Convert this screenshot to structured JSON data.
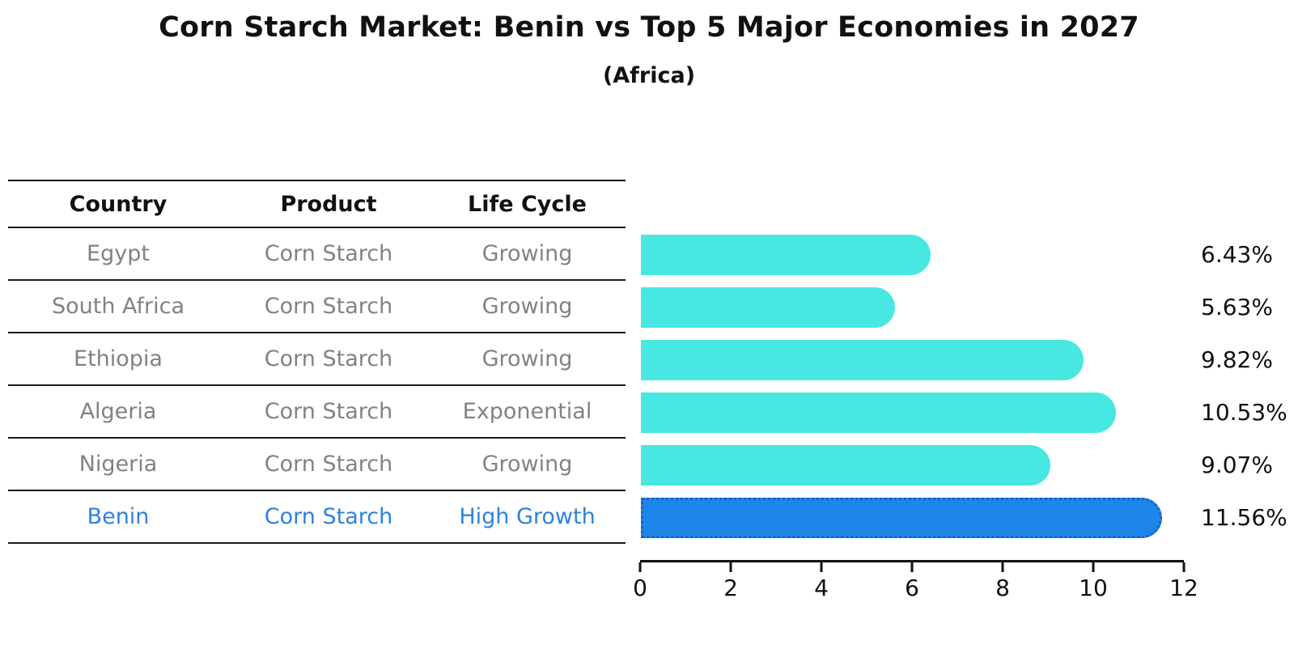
{
  "title": "Corn Starch Market: Benin vs Top 5 Major Economies in 2027",
  "subtitle": "(Africa)",
  "table": {
    "headers": [
      "Country",
      "Product",
      "Life Cycle"
    ],
    "rows": [
      {
        "country": "Egypt",
        "product": "Corn Starch",
        "life_cycle": "Growing",
        "highlighted": false
      },
      {
        "country": "South Africa",
        "product": "Corn Starch",
        "life_cycle": "Growing",
        "highlighted": false
      },
      {
        "country": "Ethiopia",
        "product": "Corn Starch",
        "life_cycle": "Growing",
        "highlighted": false
      },
      {
        "country": "Algeria",
        "product": "Corn Starch",
        "life_cycle": "Exponential",
        "highlighted": false
      },
      {
        "country": "Nigeria",
        "product": "Corn Starch",
        "life_cycle": "Growing",
        "highlighted": false
      },
      {
        "country": "Benin",
        "product": "Corn Starch",
        "life_cycle": "High Growth",
        "highlighted": true
      }
    ]
  },
  "chart_data": {
    "type": "bar",
    "orientation": "horizontal",
    "title": "Corn Starch Market: Benin vs Top 5 Major Economies in 2027",
    "subtitle": "(Africa)",
    "categories": [
      "Egypt",
      "South Africa",
      "Ethiopia",
      "Algeria",
      "Nigeria",
      "Benin"
    ],
    "values": [
      6.43,
      5.63,
      9.82,
      10.53,
      9.07,
      11.56
    ],
    "value_labels": [
      "6.43%",
      "5.63%",
      "9.82%",
      "10.53%",
      "9.07%",
      "11.56%"
    ],
    "unit": "percent",
    "xlim": [
      0,
      12
    ],
    "xticks": [
      0,
      2,
      4,
      6,
      8,
      10,
      12
    ],
    "xtick_labels": [
      "0",
      "2",
      "4",
      "6",
      "8",
      "10",
      "12"
    ],
    "grid": false,
    "legend": "none",
    "highlight_index": 5,
    "bar_color": "#47e8e1",
    "highlight_bar_color": "#1e86e8",
    "highlight_edge_color": "#1a5fc8",
    "highlight_text_color": "#2e82dc"
  }
}
